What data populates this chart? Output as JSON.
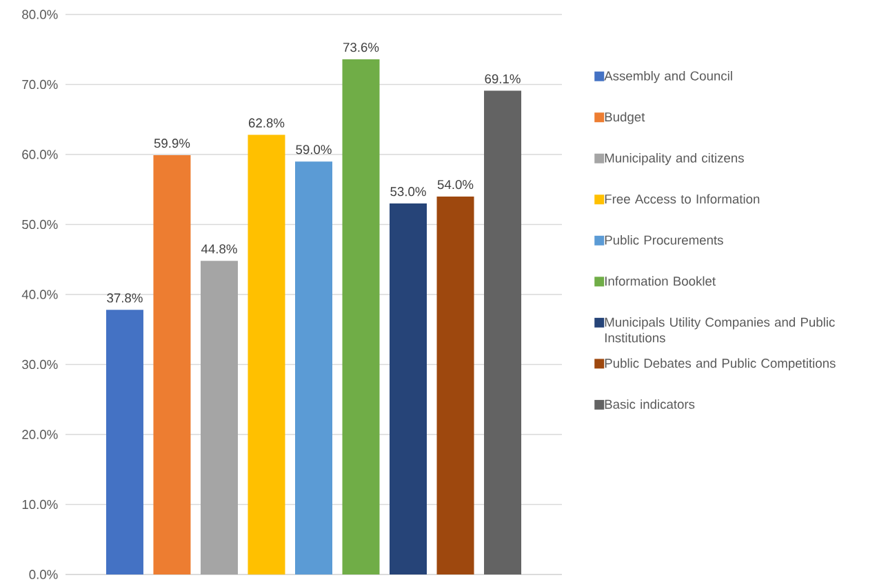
{
  "chart_data": {
    "type": "bar",
    "categories": [
      null
    ],
    "series": [
      {
        "name": "Assembly and Council",
        "color": "#4472c4",
        "values": [
          37.8
        ],
        "value_labels": [
          "37.8%"
        ]
      },
      {
        "name": "Budget",
        "color": "#ed7d31",
        "values": [
          59.9
        ],
        "value_labels": [
          "59.9%"
        ]
      },
      {
        "name": "Municipality and citizens",
        "color": "#a5a5a5",
        "values": [
          44.8
        ],
        "value_labels": [
          "44.8%"
        ]
      },
      {
        "name": "Free Access to Information",
        "color": "#ffc000",
        "values": [
          62.8
        ],
        "value_labels": [
          "62.8%"
        ]
      },
      {
        "name": "Public Procurements",
        "color": "#5b9bd5",
        "values": [
          59.0
        ],
        "value_labels": [
          "59.0%"
        ]
      },
      {
        "name": "Information Booklet",
        "color": "#70ad47",
        "values": [
          73.6
        ],
        "value_labels": [
          "73.6%"
        ]
      },
      {
        "name": "Municipals Utility Companies and Public Institutions",
        "color": "#264478",
        "values": [
          53.0
        ],
        "value_labels": [
          "53.0%"
        ]
      },
      {
        "name": "Public Debates and Public Competitions",
        "color": "#9e480e",
        "values": [
          54.0
        ],
        "value_labels": [
          "54.0%"
        ]
      },
      {
        "name": "Basic indicators",
        "color": "#636363",
        "values": [
          69.1
        ],
        "value_labels": [
          "69.1%"
        ]
      }
    ],
    "ylim": [
      0,
      80
    ],
    "yticks": [
      {
        "value": 0,
        "label": "0.0%"
      },
      {
        "value": 10,
        "label": "10.0%"
      },
      {
        "value": 20,
        "label": "20.0%"
      },
      {
        "value": 30,
        "label": "30.0%"
      },
      {
        "value": 40,
        "label": "40.0%"
      },
      {
        "value": 50,
        "label": "50.0%"
      },
      {
        "value": 60,
        "label": "60.0%"
      },
      {
        "value": 70,
        "label": "70.0%"
      },
      {
        "value": 80,
        "label": "80.0%"
      }
    ],
    "grid": "y",
    "legend": "right"
  }
}
